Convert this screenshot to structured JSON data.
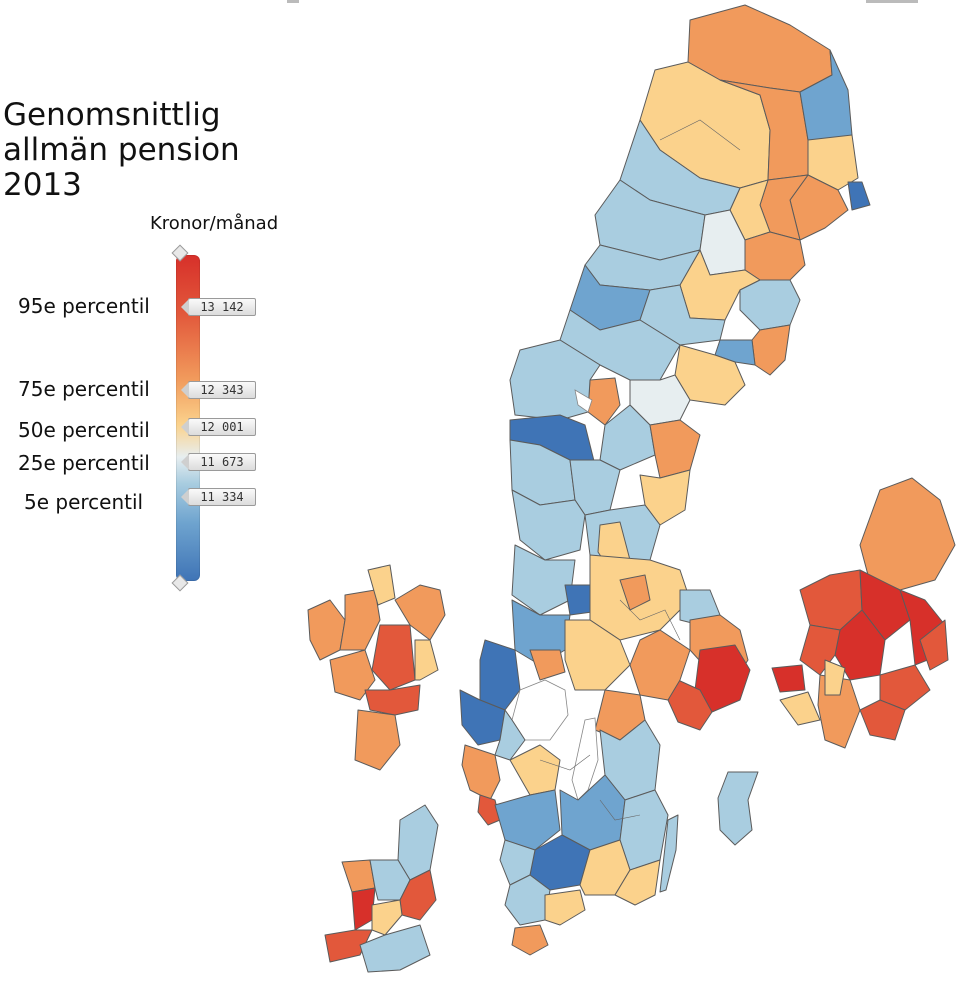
{
  "title_lines": [
    "Genomsnittlig",
    "allmän pension",
    "2013"
  ],
  "unit": "Kronor/månad",
  "legend": {
    "labels": [
      "95e percentil",
      "75e percentil",
      "50e percentil",
      "25e percentil",
      "5e percentil"
    ],
    "values": [
      "13 142",
      "12 343",
      "12 001",
      "11 673",
      "11 334"
    ]
  },
  "colors": {
    "p95": "#d7302a",
    "p85": "#e2583b",
    "p75": "#f19a5c",
    "p60": "#fbd28c",
    "p50": "#e7eef0",
    "p40": "#a9cde0",
    "p25": "#6fa4cf",
    "p5": "#3f74b6"
  }
}
